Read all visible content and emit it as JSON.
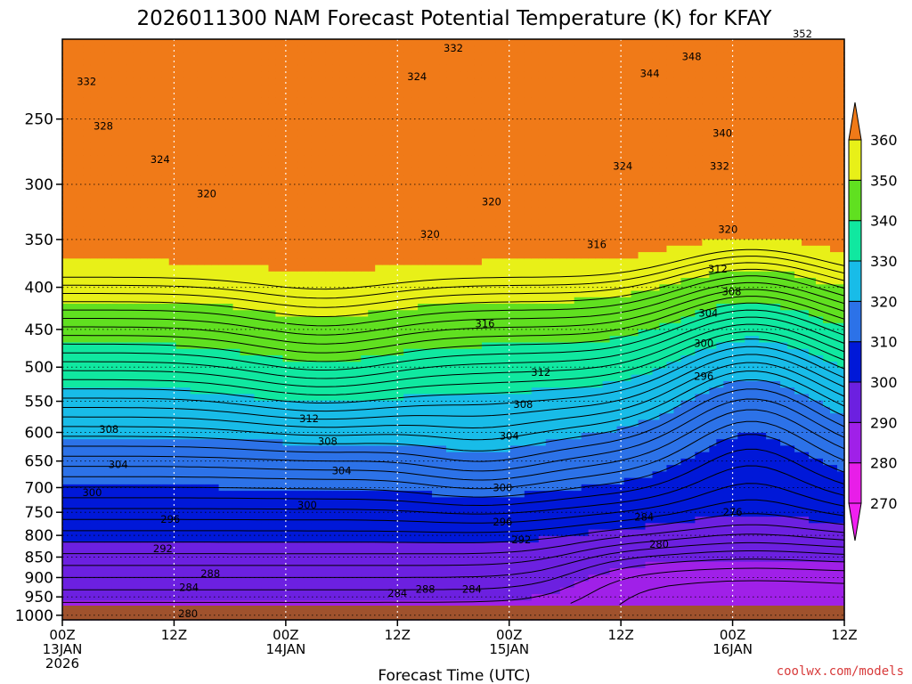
{
  "chart_data": {
    "type": "heatmap",
    "title": "2026011300 NAM Forecast Potential Temperature (K) for KFAY",
    "xlabel": "Forecast Time (UTC)",
    "ylabel": "",
    "x_ticks": [
      {
        "line1": "00Z",
        "line2": "13JAN",
        "line3": "2026",
        "hours": 0
      },
      {
        "line1": "12Z",
        "line2": "",
        "line3": "",
        "hours": 12
      },
      {
        "line1": "00Z",
        "line2": "14JAN",
        "line3": "",
        "hours": 24
      },
      {
        "line1": "12Z",
        "line2": "",
        "line3": "",
        "hours": 36
      },
      {
        "line1": "00Z",
        "line2": "15JAN",
        "line3": "",
        "hours": 48
      },
      {
        "line1": "12Z",
        "line2": "",
        "line3": "",
        "hours": 60
      },
      {
        "line1": "00Z",
        "line2": "16JAN",
        "line3": "",
        "hours": 72
      },
      {
        "line1": "12Z",
        "line2": "",
        "line3": "",
        "hours": 84
      }
    ],
    "xlim": [
      0,
      84
    ],
    "y_ticks": [
      "250",
      "300",
      "350",
      "400",
      "450",
      "500",
      "550",
      "600",
      "650",
      "700",
      "750",
      "800",
      "850",
      "900",
      "950",
      "1000"
    ],
    "ylim": [
      1013,
      200
    ],
    "colorbar": {
      "levels": [
        "270",
        "280",
        "290",
        "300",
        "310",
        "320",
        "330",
        "340",
        "350",
        "360"
      ],
      "colors": [
        "#e81ee8",
        "#a020e8",
        "#6c20e0",
        "#0018d8",
        "#2c72e8",
        "#18bce8",
        "#10e8a0",
        "#60e020",
        "#e8f018",
        "#f09818"
      ]
    },
    "contour_labels": [
      {
        "text": "332",
        "hours": 2.6,
        "p": 225
      },
      {
        "text": "328",
        "hours": 4.4,
        "p": 255
      },
      {
        "text": "324",
        "hours": 10.5,
        "p": 280
      },
      {
        "text": "320",
        "hours": 15.5,
        "p": 308
      },
      {
        "text": "308",
        "hours": 5.0,
        "p": 595
      },
      {
        "text": "304",
        "hours": 6.0,
        "p": 656
      },
      {
        "text": "300",
        "hours": 3.2,
        "p": 710
      },
      {
        "text": "296",
        "hours": 11.6,
        "p": 765
      },
      {
        "text": "292",
        "hours": 10.8,
        "p": 830
      },
      {
        "text": "288",
        "hours": 15.9,
        "p": 890
      },
      {
        "text": "284",
        "hours": 13.6,
        "p": 925
      },
      {
        "text": "280",
        "hours": 13.5,
        "p": 995
      },
      {
        "text": "324",
        "hours": 38.1,
        "p": 222
      },
      {
        "text": "332",
        "hours": 42.0,
        "p": 205
      },
      {
        "text": "320",
        "hours": 39.5,
        "p": 345
      },
      {
        "text": "320",
        "hours": 46.1,
        "p": 315
      },
      {
        "text": "316",
        "hours": 45.4,
        "p": 443
      },
      {
        "text": "312",
        "hours": 26.5,
        "p": 577
      },
      {
        "text": "308",
        "hours": 28.5,
        "p": 615
      },
      {
        "text": "304",
        "hours": 30.0,
        "p": 668
      },
      {
        "text": "300",
        "hours": 26.3,
        "p": 735
      },
      {
        "text": "300",
        "hours": 47.3,
        "p": 700
      },
      {
        "text": "296",
        "hours": 47.3,
        "p": 770
      },
      {
        "text": "292",
        "hours": 49.3,
        "p": 810
      },
      {
        "text": "288",
        "hours": 39.0,
        "p": 930
      },
      {
        "text": "284",
        "hours": 36.0,
        "p": 940
      },
      {
        "text": "284",
        "hours": 44.0,
        "p": 930
      },
      {
        "text": "312",
        "hours": 51.4,
        "p": 507
      },
      {
        "text": "308",
        "hours": 49.5,
        "p": 555
      },
      {
        "text": "304",
        "hours": 48.0,
        "p": 606
      },
      {
        "text": "316",
        "hours": 57.4,
        "p": 355
      },
      {
        "text": "324",
        "hours": 60.2,
        "p": 285
      },
      {
        "text": "344",
        "hours": 63.1,
        "p": 220
      },
      {
        "text": "348",
        "hours": 67.6,
        "p": 210
      },
      {
        "text": "352",
        "hours": 79.5,
        "p": 197
      },
      {
        "text": "340",
        "hours": 70.9,
        "p": 260
      },
      {
        "text": "332",
        "hours": 70.6,
        "p": 285
      },
      {
        "text": "320",
        "hours": 71.5,
        "p": 340
      },
      {
        "text": "312",
        "hours": 70.4,
        "p": 380
      },
      {
        "text": "308",
        "hours": 71.9,
        "p": 405
      },
      {
        "text": "304",
        "hours": 69.4,
        "p": 430
      },
      {
        "text": "300",
        "hours": 68.9,
        "p": 468
      },
      {
        "text": "296",
        "hours": 68.9,
        "p": 513
      },
      {
        "text": "284",
        "hours": 62.5,
        "p": 760
      },
      {
        "text": "280",
        "hours": 64.1,
        "p": 820
      },
      {
        "text": "276",
        "hours": 72.0,
        "p": 750
      }
    ],
    "credit": "coolwx.com/models"
  }
}
